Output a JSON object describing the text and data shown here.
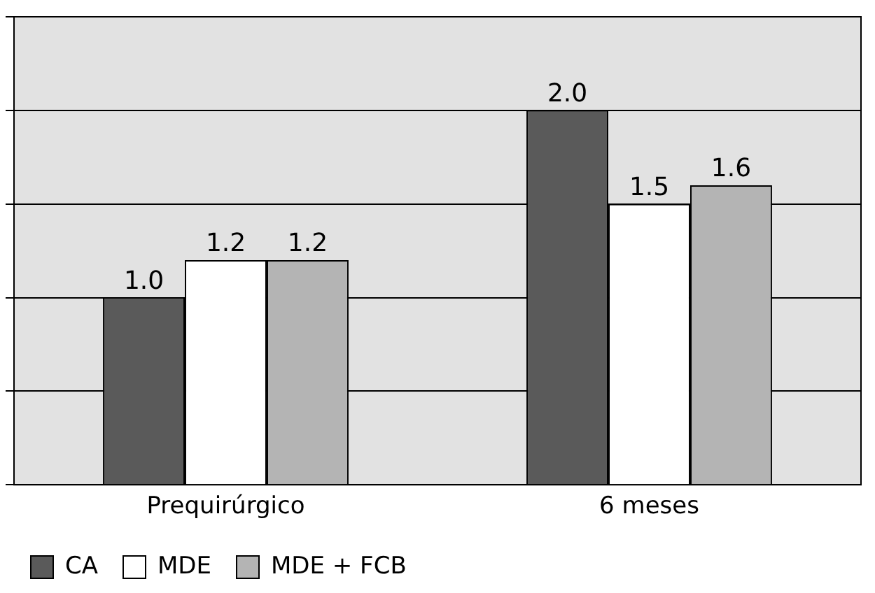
{
  "chart_data": {
    "type": "bar",
    "categories": [
      "Prequirúrgico",
      "6 meses"
    ],
    "series": [
      {
        "name": "CA",
        "color": "#5a5a5a",
        "values": [
          1.0,
          2.0
        ],
        "value_labels": [
          "1.0",
          "2.0"
        ]
      },
      {
        "name": "MDE",
        "color": "#ffffff",
        "values": [
          1.2,
          1.5
        ],
        "value_labels": [
          "1.2",
          "1.5"
        ]
      },
      {
        "name": "MDE + FCB",
        "color": "#b4b4b4",
        "values": [
          1.2,
          1.6
        ],
        "value_labels": [
          "1.2",
          "1.6"
        ]
      }
    ],
    "ylim": [
      0,
      2.5
    ],
    "yticks": [
      {
        "value": 0,
        "label": null
      },
      {
        "value": 0.5,
        "label": null
      },
      {
        "value": 1,
        "label": null
      },
      {
        "value": 1.5,
        "label": null
      },
      {
        "value": 2,
        "label": null
      },
      {
        "value": 2.5,
        "label": null
      }
    ],
    "grid": "y",
    "legend": "bottom left"
  }
}
